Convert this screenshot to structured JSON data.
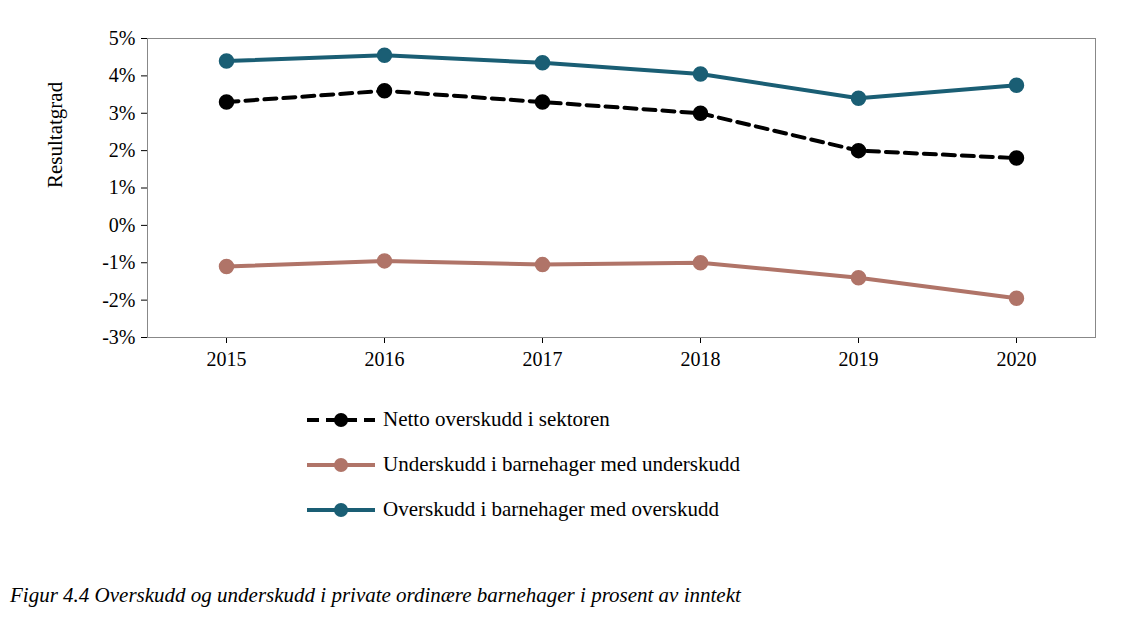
{
  "chart_data": {
    "type": "line",
    "caption": "Figur 4.4 Overskudd og underskudd i private ordinære barnehager i prosent av inntekt",
    "y_label": "Resultatgrad",
    "categories": [
      "2015",
      "2016",
      "2017",
      "2018",
      "2019",
      "2020"
    ],
    "series": [
      {
        "name": "Netto overskudd i sektoren",
        "color": "#000000",
        "line_style": "dashed",
        "marker": "circle",
        "values": [
          3.3,
          3.6,
          3.3,
          3.0,
          2.0,
          1.8
        ]
      },
      {
        "name": "Underskudd i barnehager med underskudd",
        "color": "#b07468",
        "line_style": "solid",
        "marker": "circle",
        "values": [
          -1.1,
          -0.95,
          -1.05,
          -1.0,
          -1.4,
          -1.95
        ]
      },
      {
        "name": "Overskudd i barnehager med overskudd",
        "color": "#1a5e74",
        "line_style": "solid",
        "marker": "circle",
        "values": [
          4.4,
          4.55,
          4.35,
          4.05,
          3.4,
          3.75
        ]
      }
    ],
    "ylim": [
      -3,
      5
    ],
    "yticks": [
      {
        "value": -3,
        "label": "-3%"
      },
      {
        "value": -2,
        "label": "-2%"
      },
      {
        "value": -1,
        "label": "-1%"
      },
      {
        "value": 0,
        "label": "0%"
      },
      {
        "value": 1,
        "label": "1%"
      },
      {
        "value": 2,
        "label": "2%"
      },
      {
        "value": 3,
        "label": "3%"
      },
      {
        "value": 4,
        "label": "4%"
      },
      {
        "value": 5,
        "label": "5%"
      }
    ],
    "grid": false,
    "legend": "bottom"
  }
}
